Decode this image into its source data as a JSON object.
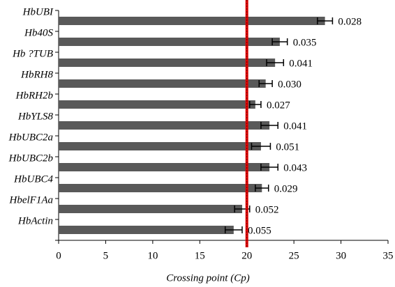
{
  "chart_data": {
    "type": "hbar",
    "categories": [
      "HbUBI",
      "Hb40S",
      "Hb ?TUB",
      "HbRH8",
      "HbRH2b",
      "HbYLS8",
      "HbUBC2a",
      "HbUBC2b",
      "HbUBC4",
      "HbelF1Aa",
      "HbActin"
    ],
    "values": [
      28.3,
      23.5,
      23,
      22,
      20.9,
      22.4,
      21.5,
      22.4,
      21.6,
      19.5,
      18.6
    ],
    "errors": [
      0.8,
      0.8,
      0.9,
      0.7,
      0.6,
      0.9,
      1.0,
      0.9,
      0.7,
      0.8,
      0.9
    ],
    "annotations": [
      "0.028",
      "0.035",
      "0.041",
      "0.030",
      "0.027",
      "0.041",
      "0.051",
      "0.043",
      "0.029",
      "0.052",
      "0.055"
    ],
    "annotation_colors": [
      "#000000",
      "#000000",
      "#000000",
      "#1f7ab8",
      "#1f7ab8",
      "#000000",
      "#000000",
      "#000000",
      "#1f7ab8",
      "#000000",
      "#000000"
    ],
    "color": "#595959",
    "reference_line": 20,
    "reference_color": "#e00000",
    "xlabel": "Crossing point (Cp)",
    "xlim": [
      0,
      35
    ],
    "xticks": [
      0,
      5,
      10,
      15,
      20,
      25,
      30,
      35
    ]
  }
}
